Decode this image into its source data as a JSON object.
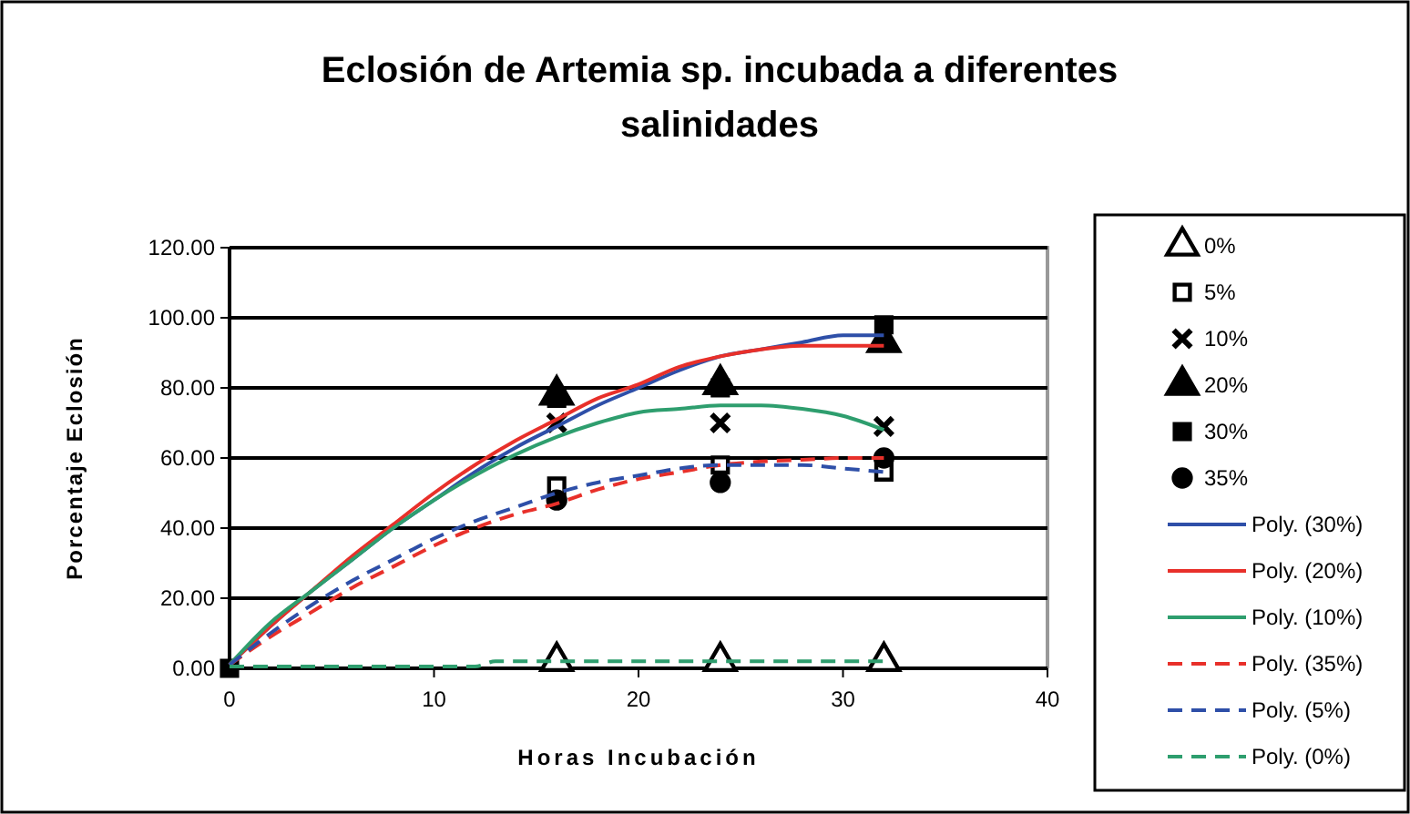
{
  "chart_data": {
    "type": "scatter",
    "title": "Eclosión de Artemia sp. incubada a diferentes salinidades",
    "xlabel": "Horas Incubación",
    "ylabel": "Porcentaje Eclosión",
    "xlim": [
      0,
      40
    ],
    "xticks": [
      0,
      10,
      20,
      30,
      40
    ],
    "ylim": [
      0,
      120
    ],
    "yticks": [
      {
        "value": 0,
        "label": "0.00"
      },
      {
        "value": 20,
        "label": "20.00"
      },
      {
        "value": 40,
        "label": "40.00"
      },
      {
        "value": 60,
        "label": "60.00"
      },
      {
        "value": 80,
        "label": "80.00"
      },
      {
        "value": 100,
        "label": "100.00"
      },
      {
        "value": 120,
        "label": "120.00"
      }
    ],
    "grid": "y",
    "legend": "right",
    "series": [
      {
        "name": "0%",
        "marker": "triangle",
        "color": "#ffffff",
        "x": [
          16,
          24,
          32
        ],
        "values": [
          2,
          2,
          2
        ]
      },
      {
        "name": "5%",
        "marker": "square",
        "color": "#ffffff",
        "x": [
          16,
          24,
          32
        ],
        "values": [
          52,
          58,
          56
        ]
      },
      {
        "name": "10%",
        "marker": "cross",
        "color": "#000000",
        "x": [
          16,
          24,
          32
        ],
        "values": [
          70,
          70,
          69
        ]
      },
      {
        "name": "20%",
        "marker": "triangle",
        "color": "#000000",
        "x": [
          16,
          24,
          32
        ],
        "values": [
          78,
          81,
          93
        ]
      },
      {
        "name": "30%",
        "marker": "square",
        "color": "#000000",
        "x": [
          0,
          16,
          24,
          32
        ],
        "values": [
          0,
          77,
          80,
          98
        ]
      },
      {
        "name": "35%",
        "marker": "circle",
        "color": "#000000",
        "x": [
          16,
          24,
          32
        ],
        "values": [
          48,
          53,
          60
        ]
      },
      {
        "name": "Poly. (30%)",
        "type": "line",
        "line_style": "solid",
        "color": "#2e4fa8",
        "x": [
          0,
          2,
          4,
          6,
          8,
          10,
          12,
          14,
          16,
          18,
          20,
          22,
          24,
          26,
          28,
          30,
          32
        ],
        "values": [
          1,
          12,
          22,
          31,
          40,
          48,
          56,
          63,
          69,
          75,
          80,
          85,
          89,
          91,
          93,
          95,
          95
        ]
      },
      {
        "name": "Poly. (20%)",
        "type": "line",
        "line_style": "solid",
        "color": "#e8302a",
        "x": [
          0,
          2,
          4,
          6,
          8,
          10,
          12,
          14,
          16,
          18,
          20,
          22,
          24,
          26,
          28,
          30,
          32
        ],
        "values": [
          1,
          12,
          22,
          32,
          41,
          50,
          58,
          65,
          71,
          77,
          81,
          86,
          89,
          91,
          92,
          92,
          92
        ]
      },
      {
        "name": "Poly. (10%)",
        "type": "line",
        "line_style": "solid",
        "color": "#2e9e6e",
        "x": [
          0,
          2,
          4,
          6,
          8,
          10,
          12,
          14,
          16,
          18,
          20,
          22,
          24,
          26,
          28,
          30,
          32
        ],
        "values": [
          1,
          13,
          22,
          31,
          40,
          48,
          55,
          61,
          66,
          70,
          73,
          74,
          75,
          75,
          74,
          72,
          68
        ]
      },
      {
        "name": "Poly. (35%)",
        "type": "line",
        "line_style": "dashed",
        "color": "#e8302a",
        "x": [
          0,
          2,
          4,
          6,
          8,
          10,
          12,
          14,
          16,
          18,
          20,
          22,
          24,
          26,
          28,
          30,
          32
        ],
        "values": [
          1,
          9,
          16,
          23,
          29,
          35,
          40,
          44,
          47,
          51,
          54,
          56,
          58,
          59,
          59.5,
          60,
          60
        ]
      },
      {
        "name": "Poly. (5%)",
        "type": "line",
        "line_style": "dashed",
        "color": "#2e4fa8",
        "x": [
          0,
          2,
          4,
          6,
          8,
          10,
          12,
          14,
          16,
          18,
          20,
          22,
          24,
          26,
          28,
          30,
          32
        ],
        "values": [
          1,
          10,
          18,
          25,
          31,
          37,
          42,
          46,
          50,
          53,
          55,
          57,
          58,
          58,
          58,
          57,
          56
        ]
      },
      {
        "name": "Poly. (0%)",
        "type": "line",
        "line_style": "dashed",
        "color": "#2e9e6e",
        "x": [
          0,
          4,
          8,
          12,
          13,
          16,
          20,
          24,
          28,
          32
        ],
        "values": [
          0.5,
          0.5,
          0.5,
          0.5,
          2,
          2,
          2,
          2,
          2,
          2
        ]
      }
    ]
  }
}
